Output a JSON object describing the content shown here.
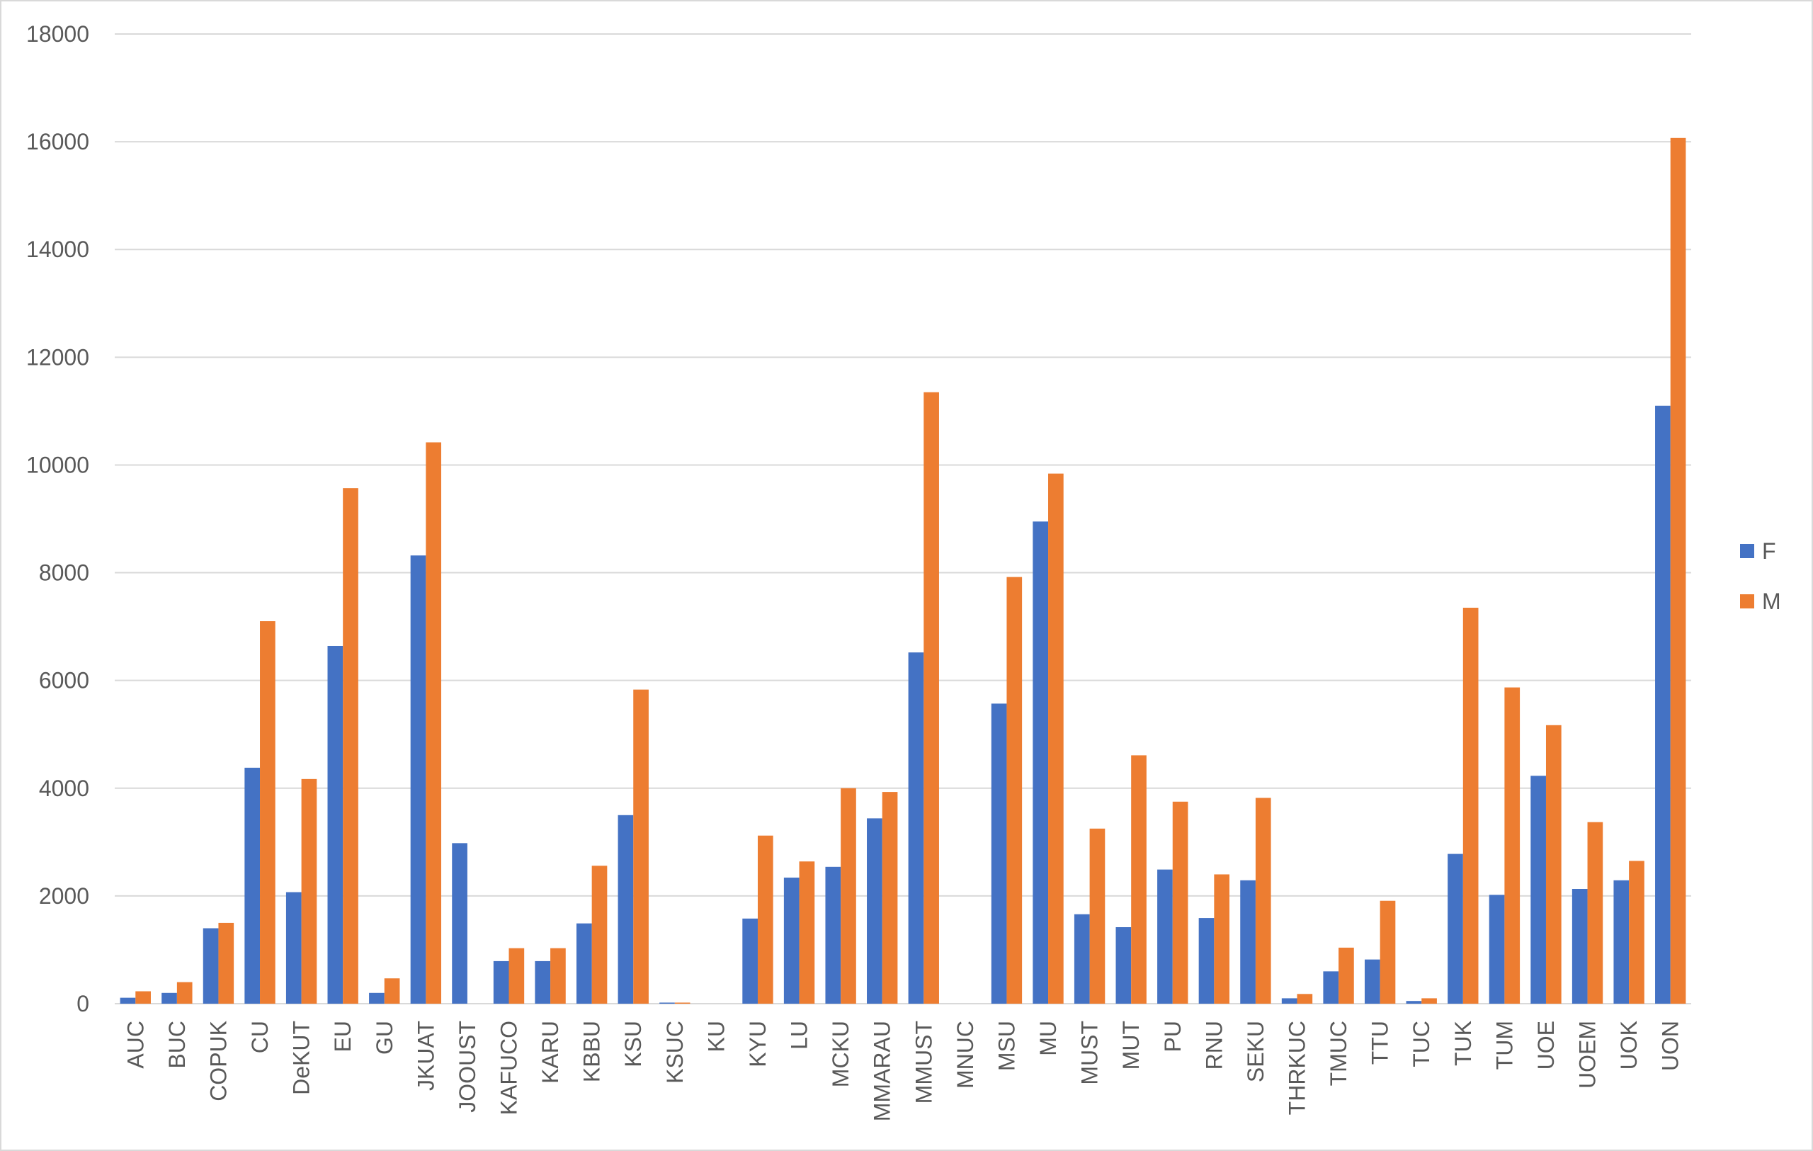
{
  "chart_data": {
    "type": "bar",
    "title": "",
    "xlabel": "",
    "ylabel": "",
    "ylim": [
      0,
      18000
    ],
    "yticks": [
      0,
      2000,
      4000,
      6000,
      8000,
      10000,
      12000,
      14000,
      16000,
      18000
    ],
    "grid": true,
    "legend_position": "right",
    "categories": [
      "AUC",
      "BUC",
      "COPUK",
      "CU",
      "DeKUT",
      "EU",
      "GU",
      "JKUAT",
      "JOOUST",
      "KAFUCO",
      "KARU",
      "KBBU",
      "KSU",
      "KSUC",
      "KU",
      "KYU",
      "LU",
      "MCKU",
      "MMARAU",
      "MMUST",
      "MNUC",
      "MSU",
      "MU",
      "MUST",
      "MUT",
      "PU",
      "RNU",
      "SEKU",
      "THRKUC",
      "TMUC",
      "TTU",
      "TUC",
      "TUK",
      "TUM",
      "UOE",
      "UOEM",
      "UOK",
      "UON"
    ],
    "series": [
      {
        "name": "F",
        "color": "#4472c4",
        "values": [
          110,
          200,
          1400,
          4380,
          2070,
          6640,
          200,
          8320,
          2980,
          790,
          790,
          1490,
          3500,
          20,
          0,
          1580,
          2340,
          2540,
          3440,
          6520,
          0,
          5570,
          8950,
          1660,
          1420,
          2490,
          1590,
          2290,
          100,
          600,
          820,
          50,
          2780,
          2020,
          4230,
          2130,
          2290,
          11100
        ]
      },
      {
        "name": "M",
        "color": "#ed7d31",
        "values": [
          230,
          400,
          1500,
          7100,
          4170,
          9570,
          470,
          10420,
          0,
          1030,
          1030,
          2560,
          5830,
          20,
          0,
          3120,
          2640,
          4000,
          3930,
          11350,
          0,
          7920,
          9840,
          3250,
          4610,
          3750,
          2400,
          3820,
          180,
          1040,
          1910,
          100,
          7350,
          5870,
          5170,
          3370,
          2650,
          16070
        ]
      }
    ]
  }
}
